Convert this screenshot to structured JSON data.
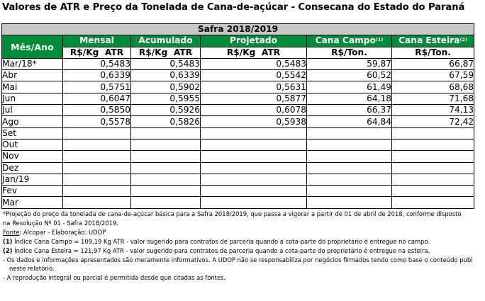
{
  "title": "Valores de ATR e Preço da Tonelada de Cana-de-açúcar - Consecana do Estado do Paraná",
  "table": {
    "safra": "Safra 2018/2019",
    "month_header": "Mês/Ano",
    "columns": [
      {
        "label": "Mensal",
        "unit": "R$/Kg  ATR",
        "sup": ""
      },
      {
        "label": "Acumulado",
        "unit": "R$/Kg  ATR",
        "sup": ""
      },
      {
        "label": "Projetado",
        "unit": "R$/Kg  ATR",
        "sup": ""
      },
      {
        "label": "Cana Campo",
        "unit": "R$/Ton.",
        "sup": "(1)"
      },
      {
        "label": "Cana Esteira",
        "unit": "R$/Ton.",
        "sup": "(2)"
      }
    ],
    "rows": [
      {
        "month": "Mar/18*",
        "values": [
          "0,5483",
          "0,5483",
          "0,5483",
          "59,87",
          "66,87"
        ]
      },
      {
        "month": "Abr",
        "values": [
          "0,6339",
          "0,6339",
          "0,5542",
          "60,52",
          "67,59"
        ]
      },
      {
        "month": "Mai",
        "values": [
          "0,5751",
          "0,5902",
          "0,5631",
          "61,49",
          "68,68"
        ]
      },
      {
        "month": "Jun",
        "values": [
          "0,6047",
          "0,5955",
          "0,5877",
          "64,18",
          "71,68"
        ]
      },
      {
        "month": "Jul",
        "values": [
          "0,5850",
          "0,5926",
          "0,6078",
          "66,37",
          "74,13"
        ]
      },
      {
        "month": "Ago",
        "values": [
          "0,5578",
          "0,5826",
          "0,5938",
          "64,84",
          "72,42"
        ]
      },
      {
        "month": "Set",
        "values": [
          "",
          "",
          "",
          "",
          ""
        ]
      },
      {
        "month": "Out",
        "values": [
          "",
          "",
          "",
          "",
          ""
        ]
      },
      {
        "month": "Nov",
        "values": [
          "",
          "",
          "",
          "",
          ""
        ]
      },
      {
        "month": "Dez",
        "values": [
          "",
          "",
          "",
          "",
          ""
        ]
      },
      {
        "month": "Jan/19",
        "values": [
          "",
          "",
          "",
          "",
          ""
        ]
      },
      {
        "month": "Fev",
        "values": [
          "",
          "",
          "",
          "",
          ""
        ]
      },
      {
        "month": "Mar",
        "values": [
          "",
          "",
          "",
          "",
          ""
        ]
      }
    ]
  },
  "notes": {
    "projection_line1": "*Projeção do preço da tonelada de cana-de-açúcar básica para a Safra 2018/2019, que passa a vigorar a partir de 01 de abril de 2018, conforme disposto",
    "projection_line2": "na Resolução Nº 01 - Safra 2018/2019.",
    "fonte_label": "Fonte",
    "fonte_text": ": Alcopar - Elaboração: UDOP",
    "note1_marker": "(1)",
    "note1_text": " Índice Cana Campo = 109,19 Kg ATR - valor sugerido para contratos de parceria quando a cota-parte do proprietário é entregue no campo.",
    "note2_marker": "(2)",
    "note2_text": " Índice Cana Esteira = 121,97  Kg ATR - valor sugerido para contratos de parceria quando a cota-parte do proprietário é entregue na esteira.",
    "disclaimer_line1": "- Os dados e informações apresentados são meramente informativos. A UDOP não se responsabiliza por negócios firmados tendo como base o conteúdo publ",
    "disclaimer_line2": "neste relatório.",
    "reproduction": "- A reprodução integral ou parcial é permitida desde que citadas as fontes."
  }
}
